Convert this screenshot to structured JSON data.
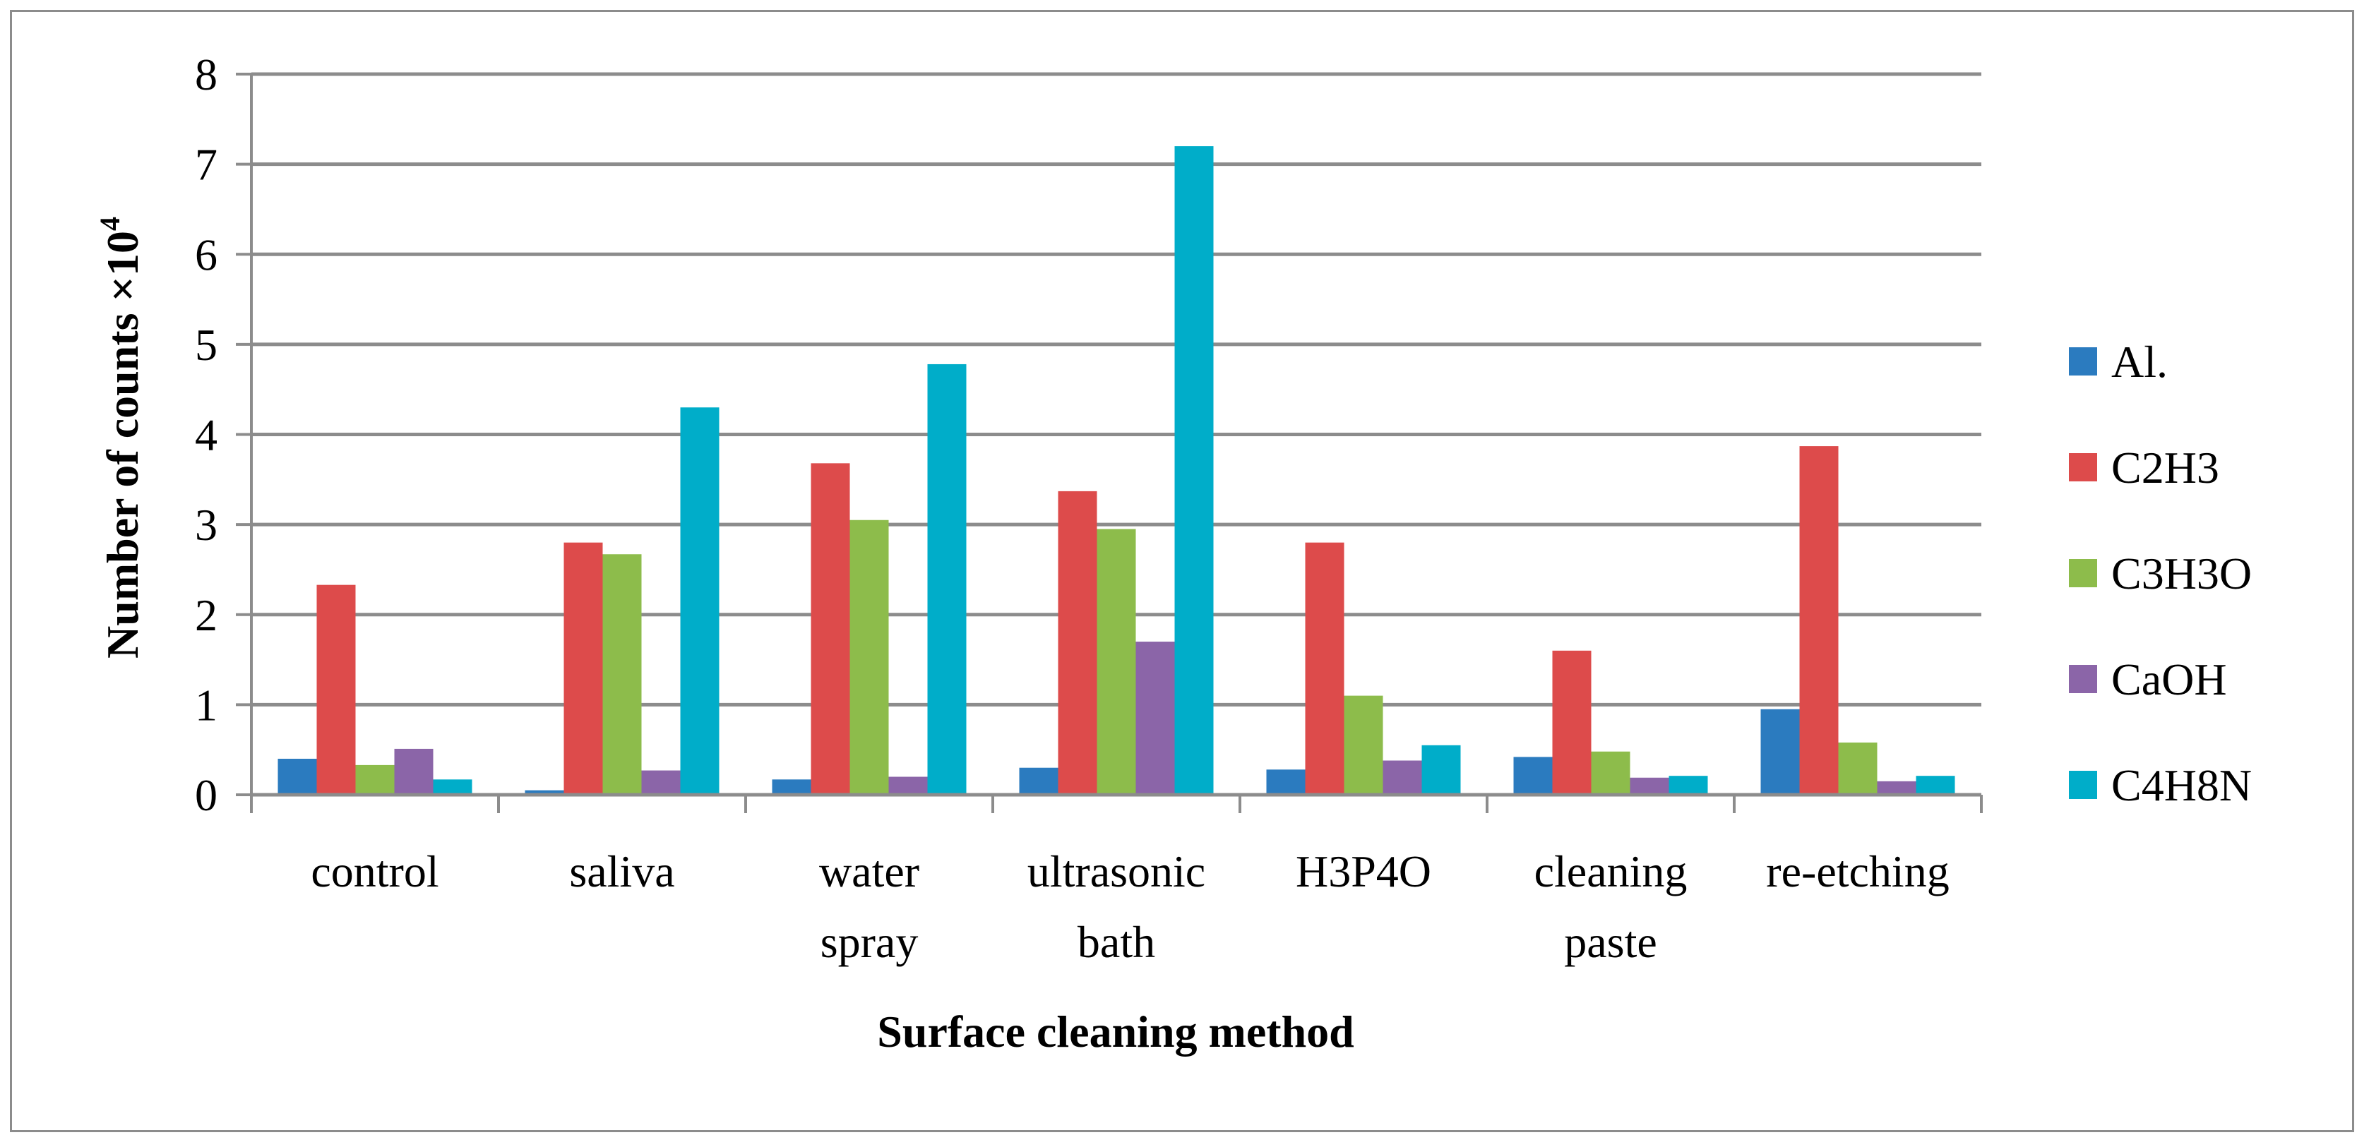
{
  "chart_data": {
    "type": "bar",
    "title": "",
    "xlabel": "Surface cleaning method",
    "ylabel": "Number of counts ×10",
    "ylabel_superscript": "4",
    "ylim": [
      0,
      8
    ],
    "yticks": [
      "0",
      "1",
      "2",
      "3",
      "4",
      "5",
      "6",
      "7",
      "8"
    ],
    "grid": true,
    "legend_position": "right",
    "categories": [
      [
        "control"
      ],
      [
        "saliva"
      ],
      [
        "water",
        "spray"
      ],
      [
        "ultrasonic",
        "bath"
      ],
      [
        "H3P4O"
      ],
      [
        "cleaning",
        "paste"
      ],
      [
        "re-etching"
      ]
    ],
    "series": [
      {
        "name": "Al.",
        "color": "#2b7bbf",
        "values": [
          0.4,
          0.05,
          0.17,
          0.3,
          0.28,
          0.42,
          0.95
        ]
      },
      {
        "name": "C2H3",
        "color": "#dd4b4b",
        "values": [
          2.33,
          2.8,
          3.68,
          3.37,
          2.8,
          1.6,
          3.87
        ]
      },
      {
        "name": "C3H3O",
        "color": "#8dbc4b",
        "values": [
          0.33,
          2.67,
          3.05,
          2.95,
          1.1,
          0.48,
          0.58
        ]
      },
      {
        "name": "CaOH",
        "color": "#8b65a8",
        "values": [
          0.51,
          0.27,
          0.2,
          1.7,
          0.38,
          0.19,
          0.15
        ]
      },
      {
        "name": "C4H8N",
        "color": "#00adc9",
        "values": [
          0.17,
          4.3,
          4.78,
          7.2,
          0.55,
          0.21,
          0.21
        ]
      }
    ]
  }
}
